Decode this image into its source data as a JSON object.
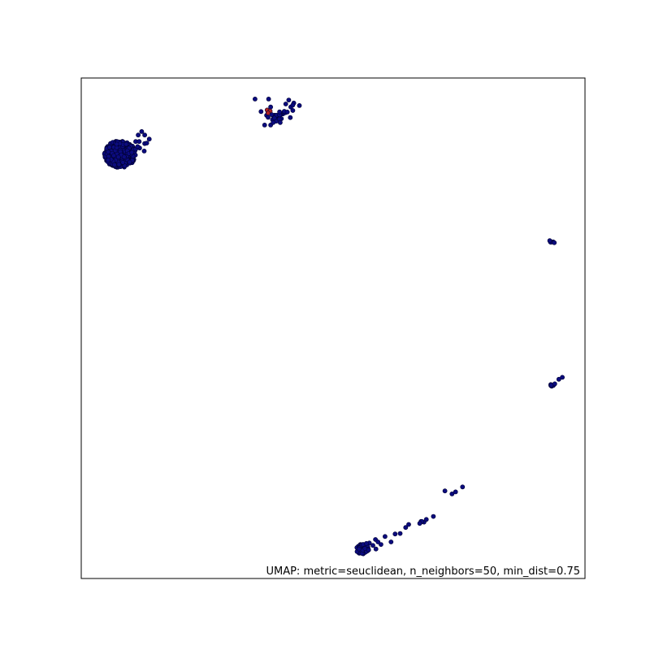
{
  "chart_data": {
    "type": "scatter",
    "title": "",
    "xlabel": "",
    "ylabel": "",
    "xlim": [
      0,
      100
    ],
    "ylim": [
      0,
      100
    ],
    "ticks": "none",
    "grid": false,
    "annotation": "UMAP: metric=seuclidean, n_neighbors=50, min_dist=0.75",
    "annotation_position": "bottom-right",
    "colors": {
      "point_fill": "#0b0b7e",
      "point_stroke": "#000033",
      "highlight_fill": "#b22222",
      "frame": "#000000"
    },
    "clusters": [
      {
        "kind": "blob",
        "center": [
          7.7,
          84.8
        ],
        "radius": [
          3.1,
          2.7
        ],
        "count": 380
      },
      {
        "kind": "blob",
        "center": [
          38.8,
          92.6
        ],
        "radius": [
          2.2,
          1.3
        ],
        "count": 20
      },
      {
        "kind": "blob",
        "center": [
          55.8,
          5.9
        ],
        "radius": [
          1.3,
          1.0
        ],
        "count": 55
      },
      {
        "kind": "blob",
        "center": [
          93.5,
          67.3
        ],
        "radius": [
          0.5,
          0.3
        ],
        "count": 4
      },
      {
        "kind": "blob",
        "center": [
          93.5,
          38.7
        ],
        "radius": [
          0.5,
          0.3
        ],
        "count": 4
      },
      {
        "kind": "blob",
        "center": [
          67.7,
          11.3
        ],
        "radius": [
          0.4,
          0.2
        ],
        "count": 3
      }
    ],
    "points": [
      [
        11.3,
        88.6
      ],
      [
        12.0,
        89.3
      ],
      [
        12.6,
        88.6
      ],
      [
        10.8,
        87.3
      ],
      [
        12.6,
        86.9
      ],
      [
        13.5,
        87.8
      ],
      [
        13.0,
        87.0
      ],
      [
        11.6,
        86.0
      ],
      [
        12.5,
        85.4
      ],
      [
        11.5,
        87.3
      ],
      [
        10.8,
        85.8
      ],
      [
        11.2,
        86.3
      ],
      [
        34.5,
        95.8
      ],
      [
        37.2,
        95.8
      ],
      [
        40.6,
        94.8
      ],
      [
        41.6,
        94.2
      ],
      [
        42.0,
        93.5
      ],
      [
        37.6,
        94.2
      ],
      [
        42.2,
        95.0
      ],
      [
        41.2,
        95.6
      ],
      [
        42.0,
        94.6
      ],
      [
        35.7,
        93.3
      ],
      [
        39.3,
        91.8
      ],
      [
        37.6,
        90.6
      ],
      [
        39.5,
        91.1
      ],
      [
        41.5,
        92.1
      ],
      [
        40.9,
        93.2
      ],
      [
        43.3,
        94.5
      ],
      [
        36.4,
        90.6
      ],
      [
        38.1,
        91.1
      ],
      [
        57.2,
        7.1
      ],
      [
        58.4,
        7.8
      ],
      [
        59.5,
        6.8
      ],
      [
        60.3,
        8.4
      ],
      [
        58.9,
        7.3
      ],
      [
        61.5,
        7.3
      ],
      [
        62.3,
        8.9
      ],
      [
        63.3,
        9.0
      ],
      [
        56.6,
        7.0
      ],
      [
        57.9,
        6.6
      ],
      [
        56.3,
        6.0
      ],
      [
        58.5,
        5.9
      ],
      [
        64.4,
        10.2
      ],
      [
        65.0,
        10.8
      ],
      [
        67.6,
        11.4
      ],
      [
        67.2,
        11.0
      ],
      [
        69.9,
        12.4
      ],
      [
        68.5,
        11.8
      ],
      [
        72.2,
        17.5
      ],
      [
        74.3,
        17.3
      ],
      [
        73.6,
        16.9
      ],
      [
        75.7,
        18.3
      ],
      [
        93.0,
        67.5
      ],
      [
        93.9,
        67.1
      ],
      [
        93.3,
        38.6
      ],
      [
        94.0,
        38.9
      ],
      [
        94.8,
        39.8
      ],
      [
        95.5,
        40.2
      ]
    ],
    "highlight_points": [
      [
        36.9,
        93.6
      ],
      [
        37.5,
        93.4
      ],
      [
        37.1,
        93.0
      ]
    ]
  }
}
